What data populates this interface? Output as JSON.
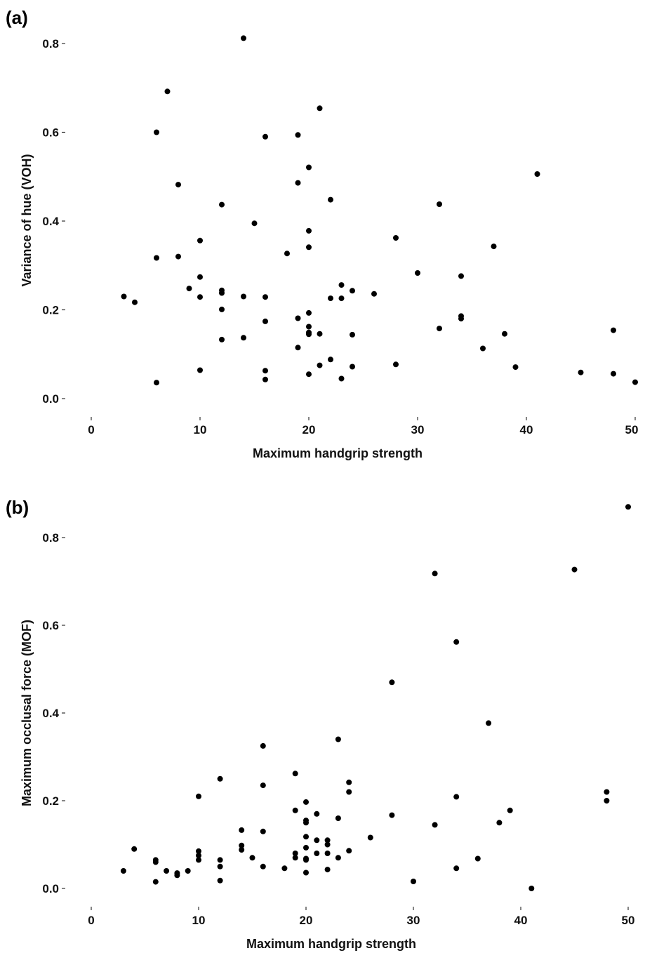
{
  "chart_data": [
    {
      "type": "scatter",
      "panel_label": "(a)",
      "title": "",
      "xlabel": "Maximum handgrip strength",
      "ylabel": "Variance of hue (VOH)",
      "xlim": [
        0,
        50
      ],
      "ylim": [
        0.0,
        0.8
      ],
      "xticks": [
        "0",
        "10",
        "20",
        "30",
        "40",
        "50"
      ],
      "yticks": [
        "0.0",
        "0.2",
        "0.4",
        "0.6",
        "0.8"
      ],
      "grid": false,
      "x": [
        3,
        4,
        6,
        6,
        6,
        7,
        8,
        8,
        9,
        10,
        10,
        10,
        10,
        12,
        12,
        12,
        12,
        12,
        14,
        14,
        14,
        15,
        16,
        16,
        16,
        16,
        16,
        18,
        19,
        19,
        19,
        19,
        20,
        20,
        20,
        20,
        20,
        20,
        20,
        20,
        21,
        21,
        21,
        22,
        22,
        22,
        23,
        23,
        23,
        24,
        24,
        24,
        26,
        28,
        28,
        30,
        32,
        32,
        34,
        34,
        34,
        36,
        37,
        38,
        39,
        41,
        45,
        48,
        48,
        50
      ],
      "y": [
        0.23,
        0.217,
        0.6,
        0.317,
        0.036,
        0.692,
        0.482,
        0.32,
        0.248,
        0.356,
        0.274,
        0.229,
        0.064,
        0.437,
        0.244,
        0.238,
        0.201,
        0.133,
        0.812,
        0.23,
        0.137,
        0.395,
        0.59,
        0.229,
        0.174,
        0.063,
        0.043,
        0.327,
        0.594,
        0.486,
        0.181,
        0.115,
        0.521,
        0.378,
        0.341,
        0.193,
        0.162,
        0.149,
        0.145,
        0.055,
        0.654,
        0.146,
        0.075,
        0.448,
        0.226,
        0.088,
        0.256,
        0.226,
        0.045,
        0.243,
        0.144,
        0.072,
        0.236,
        0.362,
        0.077,
        0.283,
        0.438,
        0.158,
        0.276,
        0.186,
        0.18,
        0.113,
        0.343,
        0.146,
        0.071,
        0.506,
        0.059,
        0.154,
        0.056,
        0.037
      ]
    },
    {
      "type": "scatter",
      "panel_label": "(b)",
      "title": "",
      "xlabel": "Maximum handgrip strength",
      "ylabel": "Maximum occlusal force (MOF)",
      "xlim": [
        0,
        50
      ],
      "ylim": [
        0.0,
        0.8
      ],
      "xticks": [
        "0",
        "10",
        "20",
        "30",
        "40",
        "50"
      ],
      "yticks": [
        "0.0",
        "0.2",
        "0.4",
        "0.6",
        "0.8"
      ],
      "grid": false,
      "x": [
        3,
        4,
        6,
        6,
        6,
        7,
        8,
        8,
        9,
        10,
        10,
        10,
        10,
        12,
        12,
        12,
        12,
        14,
        14,
        14,
        15,
        16,
        16,
        16,
        16,
        18,
        19,
        19,
        19,
        19,
        20,
        20,
        20,
        20,
        20,
        20,
        20,
        20,
        21,
        21,
        21,
        22,
        22,
        22,
        22,
        23,
        23,
        23,
        24,
        24,
        24,
        26,
        28,
        28,
        30,
        32,
        32,
        34,
        34,
        34,
        36,
        37,
        38,
        39,
        41,
        45,
        48,
        48,
        50
      ],
      "y": [
        0.04,
        0.09,
        0.065,
        0.06,
        0.015,
        0.04,
        0.035,
        0.03,
        0.04,
        0.21,
        0.085,
        0.075,
        0.065,
        0.25,
        0.065,
        0.05,
        0.018,
        0.133,
        0.098,
        0.088,
        0.07,
        0.325,
        0.235,
        0.13,
        0.05,
        0.046,
        0.262,
        0.178,
        0.08,
        0.07,
        0.197,
        0.155,
        0.15,
        0.118,
        0.093,
        0.068,
        0.065,
        0.036,
        0.17,
        0.11,
        0.08,
        0.11,
        0.1,
        0.08,
        0.043,
        0.34,
        0.16,
        0.07,
        0.242,
        0.22,
        0.086,
        0.116,
        0.47,
        0.167,
        0.016,
        0.718,
        0.145,
        0.562,
        0.209,
        0.046,
        0.068,
        0.377,
        0.15,
        0.178,
        0.0,
        0.727,
        0.22,
        0.2,
        0.87
      ]
    }
  ]
}
